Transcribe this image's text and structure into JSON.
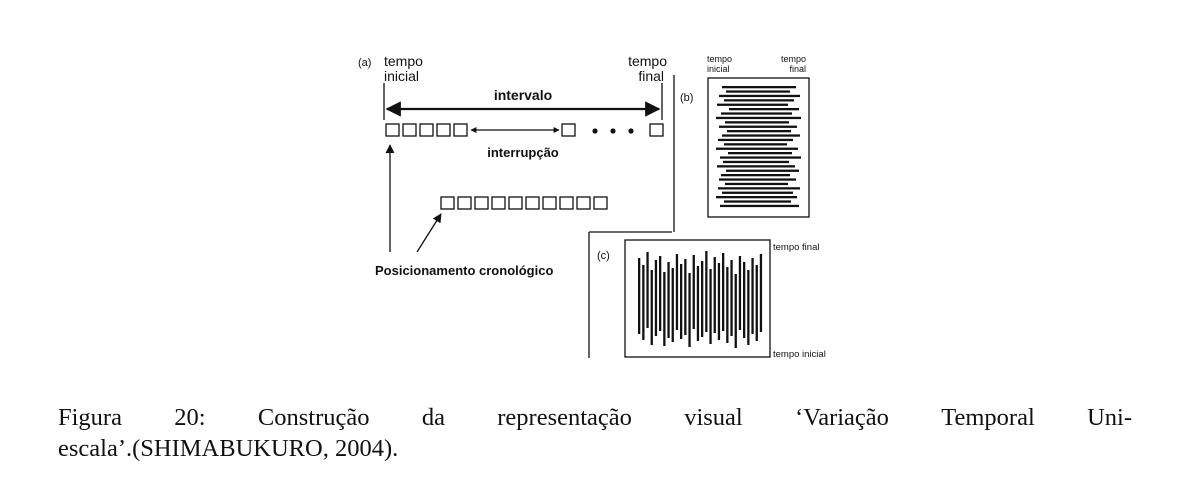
{
  "panel_a": {
    "panel_label": "(a)",
    "start_label_line1": "tempo",
    "start_label_line2": "inicial",
    "end_label_line1": "tempo",
    "end_label_line2": "final",
    "interval_label": "intervalo",
    "interruption_label": "interrupção",
    "positioning_label": "Posicionamento cronológico"
  },
  "panel_b": {
    "panel_label": "(b)",
    "start_label_line1": "tempo",
    "start_label_line2": "inicial",
    "end_label_line1": "tempo",
    "end_label_line2": "final"
  },
  "panel_c": {
    "panel_label": "(c)",
    "top_label": "tempo final",
    "bottom_label": "tempo inicial"
  },
  "caption": {
    "words_line1": [
      "Figura",
      "20:",
      "Construção",
      "da",
      "representação",
      "visual",
      "‘Variação",
      "Temporal",
      "Uni-"
    ],
    "line2": "escala’.(SHIMABUKURO, 2004)."
  }
}
